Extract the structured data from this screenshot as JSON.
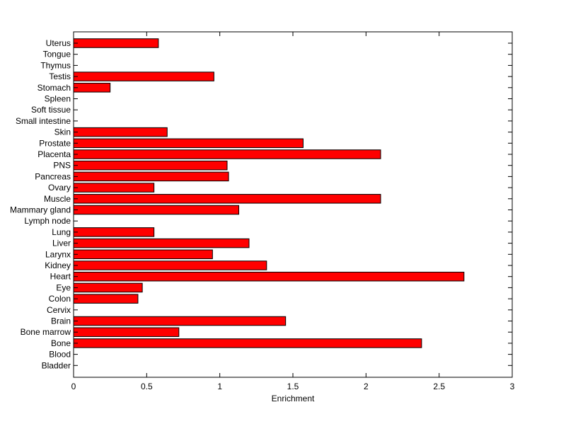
{
  "chart_data": {
    "type": "bar",
    "orientation": "horizontal",
    "categories": [
      "Uterus",
      "Tongue",
      "Thymus",
      "Testis",
      "Stomach",
      "Spleen",
      "Soft tissue",
      "Small intestine",
      "Skin",
      "Prostate",
      "Placenta",
      "PNS",
      "Pancreas",
      "Ovary",
      "Muscle",
      "Mammary gland",
      "Lymph node",
      "Lung",
      "Liver",
      "Larynx",
      "Kidney",
      "Heart",
      "Eye",
      "Colon",
      "Cervix",
      "Brain",
      "Bone marrow",
      "Bone",
      "Blood",
      "Bladder"
    ],
    "values": [
      0.58,
      0,
      0,
      0.96,
      0.25,
      0,
      0,
      0,
      0.64,
      1.57,
      2.1,
      1.05,
      1.06,
      0.55,
      2.1,
      1.13,
      0,
      0.55,
      1.2,
      0.95,
      1.32,
      2.67,
      0.47,
      0.44,
      0,
      1.45,
      0.72,
      2.38,
      0,
      0
    ],
    "title": "",
    "xlabel": "Enrichment",
    "ylabel": "",
    "xlim": [
      0,
      3
    ],
    "xticks": [
      "0",
      "0.5",
      "1",
      "1.5",
      "2",
      "2.5",
      "3"
    ],
    "grid": false,
    "colors": {
      "bar_fill": "#ff0000",
      "bar_edge": "#000000",
      "axes": "#000000",
      "background": "#ffffff"
    }
  }
}
